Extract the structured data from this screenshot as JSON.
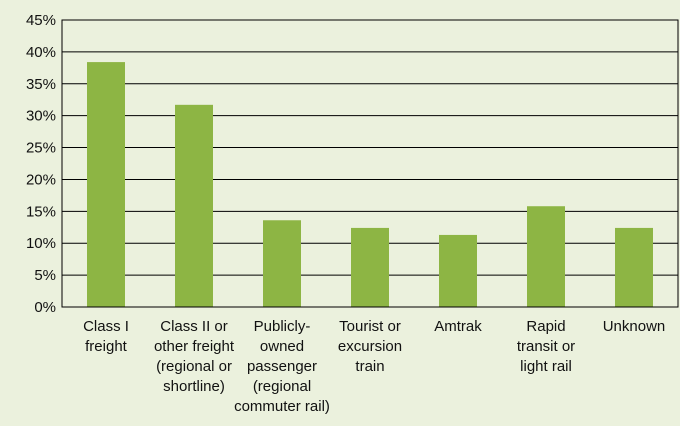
{
  "chart_data": {
    "type": "bar",
    "categories": [
      "Class I\nfreight",
      "Class II or\nother freight\n(regional or\nshortline)",
      "Publicly-\nowned\npassenger\n(regional\ncommuter rail)",
      "Tourist or\nexcursion\ntrain",
      "Amtrak",
      "Rapid\ntransit or\nlight rail",
      "Unknown"
    ],
    "values": [
      38.4,
      31.7,
      13.6,
      12.4,
      11.3,
      15.8,
      12.4
    ],
    "color": "#8db544",
    "ylim": [
      0,
      45
    ],
    "yticks": [
      {
        "value": 0,
        "label": "0%"
      },
      {
        "value": 5,
        "label": "5%"
      },
      {
        "value": 10,
        "label": "10%"
      },
      {
        "value": 15,
        "label": "15%"
      },
      {
        "value": 20,
        "label": "20%"
      },
      {
        "value": 25,
        "label": "25%"
      },
      {
        "value": 30,
        "label": "30%"
      },
      {
        "value": 35,
        "label": "35%"
      },
      {
        "value": 40,
        "label": "40%"
      },
      {
        "value": 45,
        "label": "45%"
      }
    ],
    "grid": true
  }
}
